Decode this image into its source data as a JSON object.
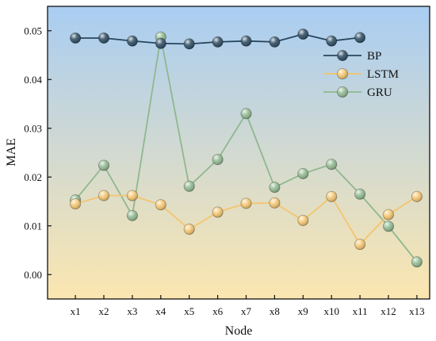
{
  "chart_data": {
    "type": "line",
    "title": "",
    "xlabel": "Node",
    "ylabel": "MAE",
    "categories": [
      "x1",
      "x2",
      "x3",
      "x4",
      "x5",
      "x6",
      "x7",
      "x8",
      "x9",
      "x10",
      "x11",
      "x12",
      "x13"
    ],
    "ylim": [
      -0.005,
      0.055
    ],
    "yticks": [
      0.0,
      0.01,
      0.02,
      0.03,
      0.04,
      0.05
    ],
    "ytick_labels": [
      "0.00",
      "0.01",
      "0.02",
      "0.03",
      "0.04",
      "0.05"
    ],
    "grid": false,
    "legend_position": "top-right",
    "background_gradient": {
      "top": "#a9cdf2",
      "bottom": "#fbe6b0"
    },
    "series": [
      {
        "name": "BP",
        "color": "#27475e",
        "values": [
          0.0485,
          0.0485,
          0.0479,
          0.0474,
          0.0473,
          0.0477,
          0.0479,
          0.0477,
          0.0493,
          0.0479,
          0.0486,
          null,
          null
        ]
      },
      {
        "name": "LSTM",
        "color": "#f4c56e",
        "values": [
          0.0145,
          0.0162,
          0.0162,
          0.0143,
          0.0093,
          0.0128,
          0.0146,
          0.0147,
          0.0111,
          0.016,
          0.0062,
          0.0123,
          0.016
        ]
      },
      {
        "name": "GRU",
        "color": "#8fb88e",
        "values": [
          0.0153,
          0.0224,
          0.0121,
          0.0487,
          0.0181,
          0.0236,
          0.033,
          0.0179,
          0.0207,
          0.0226,
          0.0165,
          0.0099,
          0.0026
        ]
      }
    ]
  }
}
